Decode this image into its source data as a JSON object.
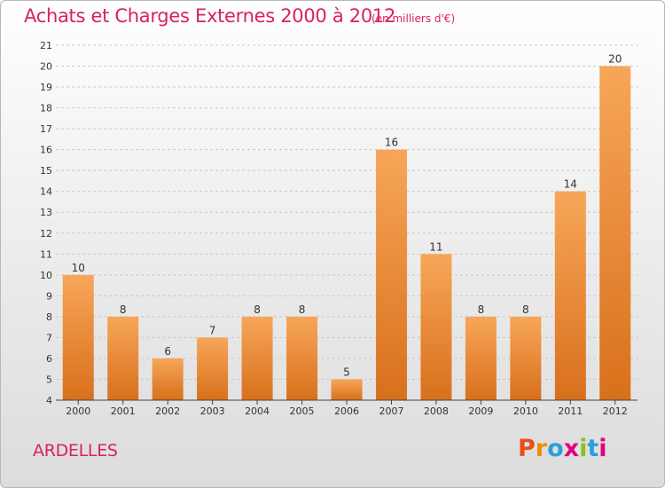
{
  "header": {
    "title": "Achats et Charges Externes 2000 à 2012",
    "subtitle": "(en milliers d'€)"
  },
  "footer": {
    "place": "ARDELLES",
    "logo_text": "Proxiti",
    "logo_colors": [
      "#e84e1b",
      "#f28c00",
      "#2aa0d8",
      "#e3007d",
      "#8cbf26",
      "#2aa0d8",
      "#e3007d"
    ]
  },
  "chart_data": {
    "type": "bar",
    "categories": [
      "2000",
      "2001",
      "2002",
      "2003",
      "2004",
      "2005",
      "2006",
      "2007",
      "2008",
      "2009",
      "2010",
      "2011",
      "2012"
    ],
    "values": [
      10,
      8,
      6,
      7,
      8,
      8,
      5,
      16,
      11,
      8,
      8,
      14,
      20
    ],
    "yticks": [
      4,
      5,
      6,
      7,
      8,
      9,
      10,
      11,
      12,
      13,
      14,
      15,
      16,
      17,
      18,
      19,
      20,
      21
    ],
    "ylim": [
      4,
      21
    ],
    "grid": true,
    "legend": "none",
    "colors": {
      "bar_top": "#f7a659",
      "bar_bottom": "#d8701b",
      "grid": "#c8c8c8",
      "axis": "#444444"
    }
  }
}
